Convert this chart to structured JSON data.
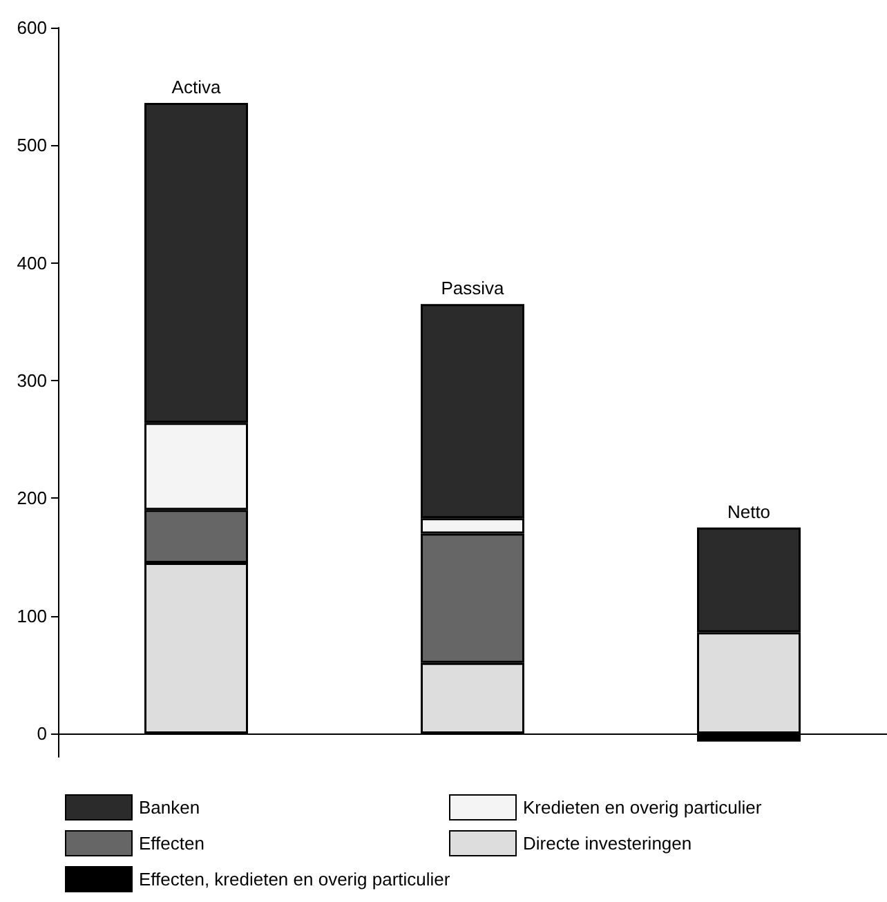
{
  "chart_data": {
    "type": "bar",
    "stacked": true,
    "categories": [
      "Activa",
      "Passiva",
      "Netto"
    ],
    "series": [
      {
        "name": "Directe investeringen",
        "color": "#dddddd",
        "values": [
          145,
          60,
          86
        ]
      },
      {
        "name": "Effecten",
        "color": "#666666",
        "values": [
          45,
          110,
          null
        ]
      },
      {
        "name": "Kredieten en overig particulier",
        "color": "#f4f4f4",
        "values": [
          74,
          13,
          null
        ]
      },
      {
        "name": "Banken",
        "color": "#2b2b2b",
        "values": [
          272,
          182,
          89
        ]
      },
      {
        "name": "Effecten, kredieten en overig particulier",
        "color": "#000000",
        "values": [
          null,
          null,
          -7
        ]
      }
    ],
    "ylim": [
      -20,
      600
    ],
    "yticks": [
      0,
      100,
      200,
      300,
      400,
      500,
      600
    ],
    "legend": "bottom",
    "tick_labels": "y"
  }
}
